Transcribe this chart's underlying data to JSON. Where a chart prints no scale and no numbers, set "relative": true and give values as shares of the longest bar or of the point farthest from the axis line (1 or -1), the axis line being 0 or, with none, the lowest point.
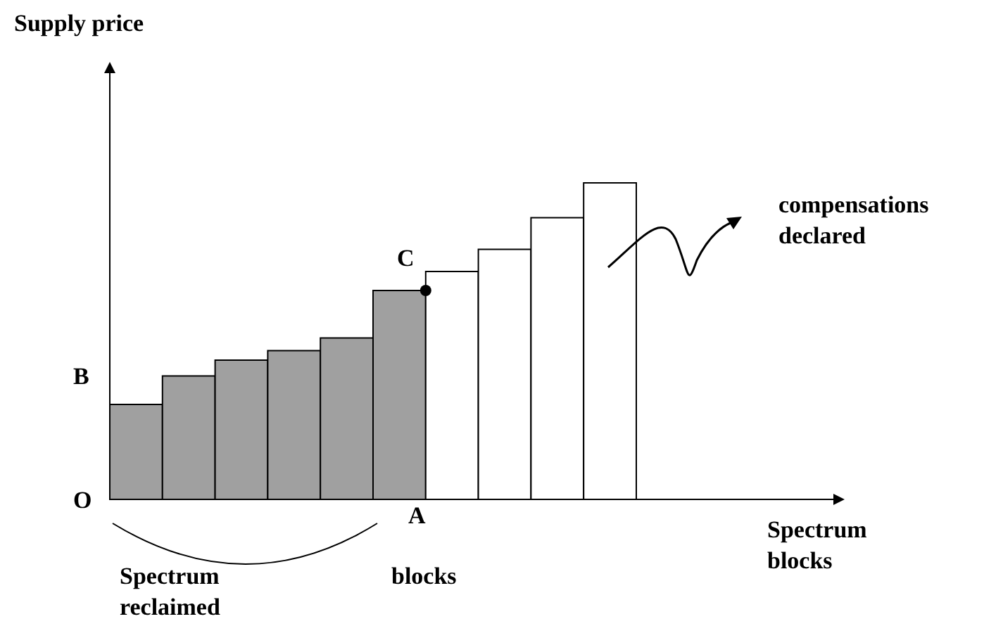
{
  "chart_data": {
    "type": "bar",
    "relative": true,
    "categories": [
      null,
      null,
      null,
      null,
      null,
      null,
      null,
      null,
      null,
      null
    ],
    "values": [
      0.3,
      0.39,
      0.44,
      0.47,
      0.51,
      0.66,
      0.72,
      0.79,
      0.89,
      1
    ],
    "colors": [
      "#a0a0a0",
      "#a0a0a0",
      "#a0a0a0",
      "#a0a0a0",
      "#a0a0a0",
      "#a0a0a0",
      "#ffffff",
      "#ffffff",
      "#ffffff",
      "#ffffff"
    ],
    "annotations": [
      "O",
      "A",
      "B",
      "C",
      "compensations declared",
      "Spectrum reclaimed",
      "blocks",
      "Supply price",
      "Spectrum blocks"
    ]
  }
}
